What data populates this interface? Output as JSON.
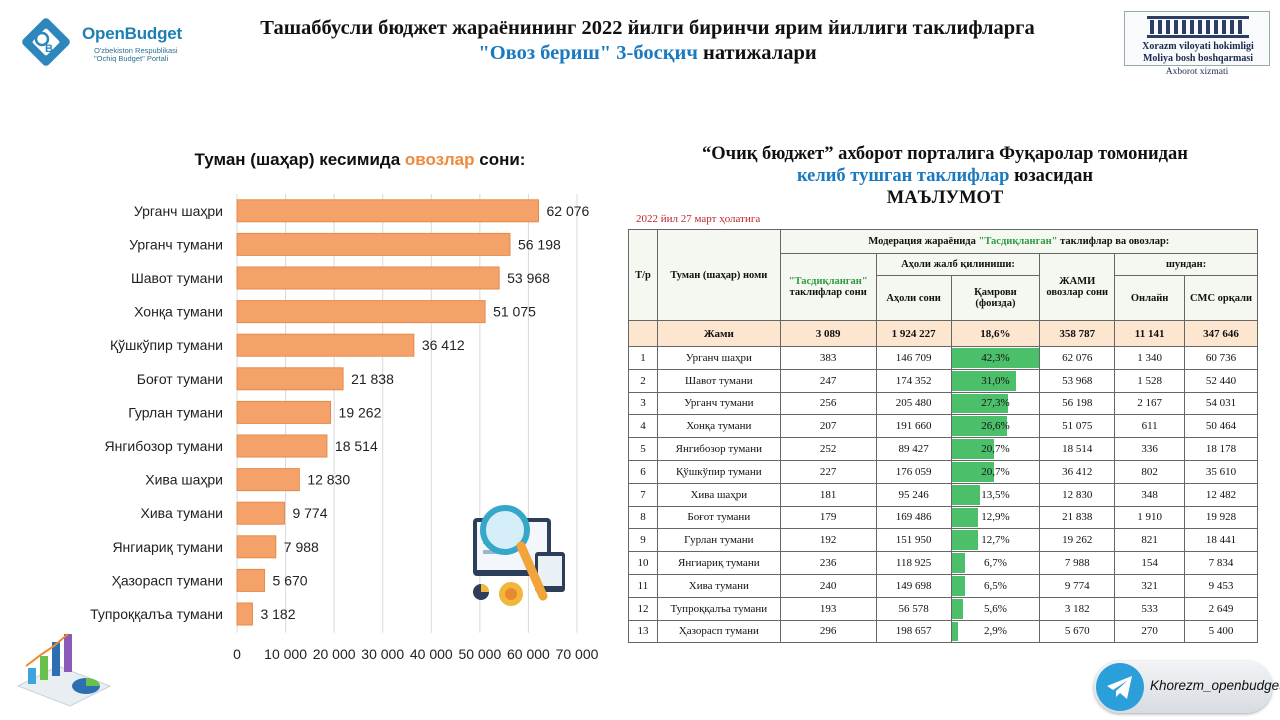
{
  "header": {
    "logo_brand": "OpenBudget",
    "logo_sub_1": "O'zbekiston Respublikasi",
    "logo_sub_2": "\"Ochiq Budget\" Portali",
    "title_line1": "Ташаббусли бюджет жараёнининг 2022 йилги биринчи ярим йиллиги таклифларга",
    "title_line2_blue": "\"Овоз бериш\" 3-босқич",
    "title_line2_rest": " натижалари",
    "gov_line1": "Xorazm viloyati hokimligi",
    "gov_line2": "Moliya bosh boshqarmasi",
    "gov_line3": "Axborot xizmati"
  },
  "chart_title": {
    "prefix": "Туман (шаҳар) кесимида ",
    "highlight": "овозлар",
    "suffix": " сони:"
  },
  "chart_data": {
    "type": "bar",
    "orientation": "horizontal",
    "categories": [
      "Урганч шаҳри",
      "Урганч тумани",
      "Шавот тумани",
      "Хонқа тумани",
      "Қўшкўпир тумани",
      "Боғот тумани",
      "Гурлан тумани",
      "Янгибозор тумани",
      "Хива шаҳри",
      "Хива тумани",
      "Янгиариқ тумани",
      "Ҳазорасп тумани",
      "Тупроққалъа тумани"
    ],
    "values": [
      62076,
      56198,
      53968,
      51075,
      36412,
      21838,
      19262,
      18514,
      12830,
      9774,
      7988,
      5670,
      3182
    ],
    "value_labels": [
      "62 076",
      "56 198",
      "53 968",
      "51 075",
      "36 412",
      "21 838",
      "19 262",
      "18 514",
      "12 830",
      "9 774",
      "7 988",
      "5 670",
      "3 182"
    ],
    "xlim": [
      0,
      70000
    ],
    "xticks": [
      "0",
      "10 000",
      "20 000",
      "30 000",
      "40 000",
      "50 000",
      "60 000",
      "70 000"
    ],
    "bar_color": "#f5a26a",
    "bar_edge": "#e58a48",
    "grid": true
  },
  "right_title": {
    "line1": "“Очиқ бюджет” ахборот порталига Фуқаролар томонидан",
    "line2_blue": "келиб тушган таклифлар",
    "line2_rest": " юзасидан",
    "line3": "МАЪЛУМОТ"
  },
  "as_of": "2022 йил 27 март ҳолатига",
  "table": {
    "h_num": "Т/р",
    "h_district": "Туман (шаҳар) номи",
    "h_moderation_pre": "Модерация жараёнида ",
    "h_moderation_green": "\"Тасдиқланган\"",
    "h_moderation_post": " таклифлар ва овозлар:",
    "h_approved_green": "\"Тасдиқланган\"",
    "h_approved_rest": "таклифлар сони",
    "h_population": "Аҳоли жалб қилиниши:",
    "h_pop_count": "Аҳоли сони",
    "h_coverage": "Қамрови (фоизда)",
    "h_total_votes": "ЖАМИ овозлар сони",
    "h_of_which": "шундан:",
    "h_online": "Онлайн",
    "h_sms": "СМС орқали",
    "total": {
      "label": "Жами",
      "approved": "3 089",
      "population": "1 924 227",
      "coverage": "18,6%",
      "votes": "358 787",
      "online": "11 141",
      "sms": "347 646"
    },
    "rows": [
      {
        "n": "1",
        "name": "Урганч шаҳри",
        "approved": "383",
        "population": "146 709",
        "coverage": "42,3%",
        "pct": 42.3,
        "votes": "62 076",
        "online": "1 340",
        "sms": "60 736"
      },
      {
        "n": "2",
        "name": "Шавот тумани",
        "approved": "247",
        "population": "174 352",
        "coverage": "31,0%",
        "pct": 31.0,
        "votes": "53 968",
        "online": "1 528",
        "sms": "52 440"
      },
      {
        "n": "3",
        "name": "Урганч тумани",
        "approved": "256",
        "population": "205 480",
        "coverage": "27,3%",
        "pct": 27.3,
        "votes": "56 198",
        "online": "2 167",
        "sms": "54 031"
      },
      {
        "n": "4",
        "name": "Хонқа тумани",
        "approved": "207",
        "population": "191 660",
        "coverage": "26,6%",
        "pct": 26.6,
        "votes": "51 075",
        "online": "611",
        "sms": "50 464"
      },
      {
        "n": "5",
        "name": "Янгибозор тумани",
        "approved": "252",
        "population": "89 427",
        "coverage": "20,7%",
        "pct": 20.7,
        "votes": "18 514",
        "online": "336",
        "sms": "18 178"
      },
      {
        "n": "6",
        "name": "Қўшкўпир тумани",
        "approved": "227",
        "population": "176 059",
        "coverage": "20,7%",
        "pct": 20.7,
        "votes": "36 412",
        "online": "802",
        "sms": "35 610"
      },
      {
        "n": "7",
        "name": "Хива шаҳри",
        "approved": "181",
        "population": "95 246",
        "coverage": "13,5%",
        "pct": 13.5,
        "votes": "12 830",
        "online": "348",
        "sms": "12 482"
      },
      {
        "n": "8",
        "name": "Боғот тумани",
        "approved": "179",
        "population": "169 486",
        "coverage": "12,9%",
        "pct": 12.9,
        "votes": "21 838",
        "online": "1 910",
        "sms": "19 928"
      },
      {
        "n": "9",
        "name": "Гурлан тумани",
        "approved": "192",
        "population": "151 950",
        "coverage": "12,7%",
        "pct": 12.7,
        "votes": "19 262",
        "online": "821",
        "sms": "18 441"
      },
      {
        "n": "10",
        "name": "Янгиариқ тумани",
        "approved": "236",
        "population": "118 925",
        "coverage": "6,7%",
        "pct": 6.7,
        "votes": "7 988",
        "online": "154",
        "sms": "7 834"
      },
      {
        "n": "11",
        "name": "Хива тумани",
        "approved": "240",
        "population": "149 698",
        "coverage": "6,5%",
        "pct": 6.5,
        "votes": "9 774",
        "online": "321",
        "sms": "9 453"
      },
      {
        "n": "12",
        "name": "Тупроққалъа тумани",
        "approved": "193",
        "population": "56 578",
        "coverage": "5,6%",
        "pct": 5.6,
        "votes": "3 182",
        "online": "533",
        "sms": "2 649"
      },
      {
        "n": "13",
        "name": "Ҳазорасп тумани",
        "approved": "296",
        "population": "198 657",
        "coverage": "2,9%",
        "pct": 2.9,
        "votes": "5 670",
        "online": "270",
        "sms": "5 400"
      }
    ]
  },
  "telegram": {
    "handle": "Khorezm_openbudget"
  },
  "colors": {
    "accent_blue": "#1a79bf",
    "accent_orange": "#ef8a3c",
    "accent_green": "#4cbf6b",
    "total_row": "#fde6d0"
  },
  "icons": [
    "openbudget-logo-icon",
    "government-building-icon",
    "magnifier-analytics-icon",
    "bar-chart-pie-icon",
    "telegram-icon"
  ]
}
